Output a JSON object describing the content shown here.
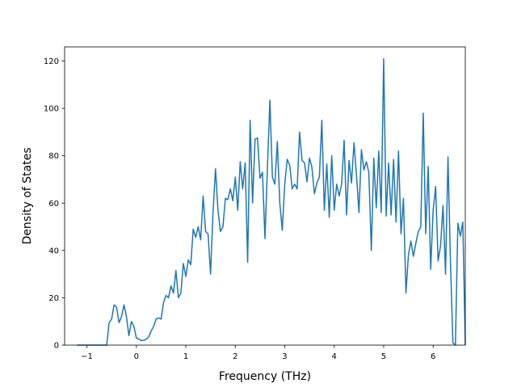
{
  "chart_data": {
    "type": "line",
    "title": "",
    "xlabel": "Frequency (THz)",
    "ylabel": "Density of States",
    "xlim": [
      -1.45,
      6.65
    ],
    "ylim": [
      0,
      126
    ],
    "x_ticks": [
      -1,
      0,
      1,
      2,
      3,
      4,
      5,
      6
    ],
    "x_tick_labels": [
      "−1",
      "0",
      "1",
      "2",
      "3",
      "4",
      "5",
      "6"
    ],
    "y_ticks": [
      0,
      20,
      40,
      60,
      80,
      100,
      120
    ],
    "y_tick_labels": [
      "0",
      "20",
      "40",
      "60",
      "80",
      "100",
      "120"
    ],
    "grid": false,
    "legend": null,
    "series": [
      {
        "color": "#1f77b4",
        "points": [
          [
            -1.2,
            0
          ],
          [
            -0.6,
            0
          ],
          [
            -0.55,
            9.5
          ],
          [
            -0.5,
            11
          ],
          [
            -0.45,
            17
          ],
          [
            -0.4,
            16
          ],
          [
            -0.35,
            9.5
          ],
          [
            -0.3,
            12
          ],
          [
            -0.25,
            17
          ],
          [
            -0.2,
            12
          ],
          [
            -0.15,
            4
          ],
          [
            -0.1,
            10
          ],
          [
            -0.05,
            8
          ],
          [
            0.0,
            3
          ],
          [
            0.05,
            2.5
          ],
          [
            0.1,
            2
          ],
          [
            0.15,
            2
          ],
          [
            0.2,
            2.5
          ],
          [
            0.25,
            3.5
          ],
          [
            0.3,
            6
          ],
          [
            0.35,
            8
          ],
          [
            0.4,
            11
          ],
          [
            0.45,
            11.5
          ],
          [
            0.5,
            11
          ],
          [
            0.55,
            18
          ],
          [
            0.6,
            21
          ],
          [
            0.65,
            20
          ],
          [
            0.7,
            25
          ],
          [
            0.75,
            22
          ],
          [
            0.8,
            31.5
          ],
          [
            0.85,
            20
          ],
          [
            0.9,
            22
          ],
          [
            0.95,
            34.5
          ],
          [
            1.0,
            29
          ],
          [
            1.05,
            36
          ],
          [
            1.1,
            34
          ],
          [
            1.15,
            49
          ],
          [
            1.2,
            45.5
          ],
          [
            1.25,
            50
          ],
          [
            1.3,
            44.5
          ],
          [
            1.35,
            63
          ],
          [
            1.4,
            48
          ],
          [
            1.45,
            47
          ],
          [
            1.5,
            30
          ],
          [
            1.55,
            56
          ],
          [
            1.6,
            74.5
          ],
          [
            1.65,
            57
          ],
          [
            1.7,
            48
          ],
          [
            1.75,
            50
          ],
          [
            1.8,
            62
          ],
          [
            1.85,
            61.5
          ],
          [
            1.9,
            66
          ],
          [
            1.95,
            61
          ],
          [
            2.0,
            71
          ],
          [
            2.05,
            57
          ],
          [
            2.1,
            77.5
          ],
          [
            2.15,
            66
          ],
          [
            2.2,
            77
          ],
          [
            2.25,
            35
          ],
          [
            2.3,
            95
          ],
          [
            2.35,
            60
          ],
          [
            2.4,
            87
          ],
          [
            2.45,
            87.5
          ],
          [
            2.5,
            70.5
          ],
          [
            2.55,
            73
          ],
          [
            2.6,
            45
          ],
          [
            2.65,
            75
          ],
          [
            2.7,
            103.5
          ],
          [
            2.75,
            71
          ],
          [
            2.8,
            68
          ],
          [
            2.85,
            86
          ],
          [
            2.9,
            60
          ],
          [
            2.95,
            48.5
          ],
          [
            3.0,
            68
          ],
          [
            3.05,
            78.5
          ],
          [
            3.1,
            76
          ],
          [
            3.15,
            66
          ],
          [
            3.2,
            68
          ],
          [
            3.25,
            66
          ],
          [
            3.3,
            90
          ],
          [
            3.35,
            78
          ],
          [
            3.4,
            77
          ],
          [
            3.45,
            69
          ],
          [
            3.5,
            79
          ],
          [
            3.55,
            75
          ],
          [
            3.6,
            64
          ],
          [
            3.65,
            68.5
          ],
          [
            3.7,
            71
          ],
          [
            3.75,
            95
          ],
          [
            3.8,
            57
          ],
          [
            3.85,
            76.5
          ],
          [
            3.9,
            54
          ],
          [
            3.95,
            80
          ],
          [
            4.0,
            57
          ],
          [
            4.05,
            68
          ],
          [
            4.1,
            63
          ],
          [
            4.15,
            68
          ],
          [
            4.2,
            86.5
          ],
          [
            4.25,
            55
          ],
          [
            4.3,
            78
          ],
          [
            4.35,
            68.5
          ],
          [
            4.4,
            85.5
          ],
          [
            4.45,
            72
          ],
          [
            4.5,
            56
          ],
          [
            4.55,
            82.5
          ],
          [
            4.6,
            74
          ],
          [
            4.65,
            77.5
          ],
          [
            4.7,
            73
          ],
          [
            4.75,
            40
          ],
          [
            4.8,
            79
          ],
          [
            4.85,
            58
          ],
          [
            4.9,
            82
          ],
          [
            4.95,
            56
          ],
          [
            5.0,
            121
          ],
          [
            5.05,
            54.5
          ],
          [
            5.1,
            77
          ],
          [
            5.15,
            55
          ],
          [
            5.2,
            78.5
          ],
          [
            5.25,
            52
          ],
          [
            5.3,
            82
          ],
          [
            5.35,
            47
          ],
          [
            5.4,
            62
          ],
          [
            5.45,
            22
          ],
          [
            5.5,
            38
          ],
          [
            5.55,
            44
          ],
          [
            5.6,
            37.5
          ],
          [
            5.65,
            43
          ],
          [
            5.7,
            48
          ],
          [
            5.75,
            50
          ],
          [
            5.8,
            98
          ],
          [
            5.85,
            47
          ],
          [
            5.9,
            75.5
          ],
          [
            5.95,
            32
          ],
          [
            6.0,
            57
          ],
          [
            6.05,
            67
          ],
          [
            6.1,
            35.5
          ],
          [
            6.15,
            42
          ],
          [
            6.2,
            59
          ],
          [
            6.25,
            30
          ],
          [
            6.3,
            79.5
          ],
          [
            6.35,
            35
          ],
          [
            6.4,
            1
          ],
          [
            6.45,
            0
          ],
          [
            6.5,
            51.5
          ],
          [
            6.55,
            46
          ],
          [
            6.6,
            52
          ],
          [
            6.65,
            0
          ]
        ]
      }
    ]
  }
}
